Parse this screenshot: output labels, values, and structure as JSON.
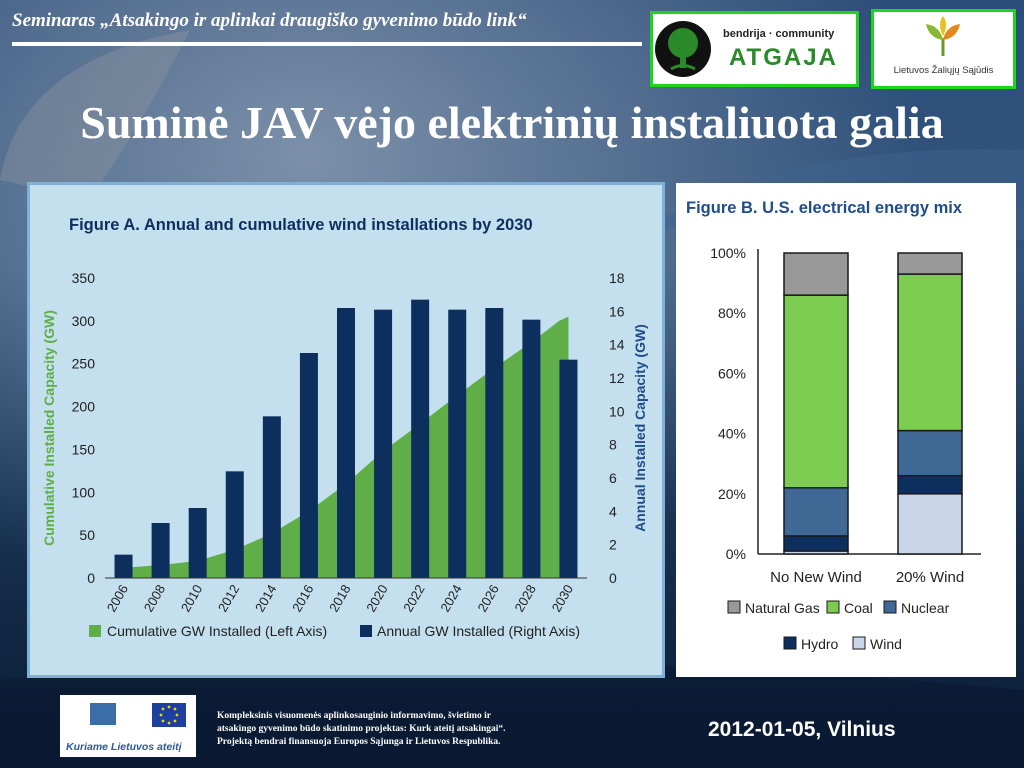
{
  "header": {
    "seminar": "Seminaras „Atsakingo ir aplinkai draugiško gyvenimo būdo link“",
    "logo_atgaja": {
      "top": "bendrija · community",
      "name": "ATGAJA"
    },
    "logo_lzs": {
      "name": "Lietuvos Žaliųjų Sąjūdis"
    }
  },
  "slide": {
    "title": "Suminė JAV vėjo elektrinių instaliuota galia"
  },
  "footer": {
    "logo_text": "Kuriame Lietuvos ateitį",
    "line1": "Kompleksinis visuomenės aplinkosauginio informavimo, švietimo ir",
    "line2": "atsakingo gyvenimo būdo skatinimo projektas: Kurk ateitį atsakingai“.",
    "line3": "Projektą bendrai finansuoja Europos Sąjunga ir Lietuvos Respublika.",
    "date": "2012-01-05, Vilnius"
  },
  "colors": {
    "green": "#5fae47",
    "navy": "#0d2f5e",
    "panel": "#c4dfee",
    "logo_border": "#1bd61b"
  },
  "chart_data": [
    {
      "type": "bar",
      "title": "Figure A. Annual and cumulative wind installations by 2030",
      "ylabel": "Cumulative Installed Capacity (GW)",
      "y2label": "Annual Installed Capacity (GW)",
      "ylim": [
        0,
        350
      ],
      "y2lim": [
        0,
        18
      ],
      "yticks": [
        "0",
        "50",
        "100",
        "150",
        "200",
        "250",
        "300",
        "350"
      ],
      "y2ticks": [
        "0",
        "2",
        "4",
        "6",
        "8",
        "10",
        "12",
        "14",
        "16",
        "18"
      ],
      "categories": [
        "2006",
        "2008",
        "2010",
        "2012",
        "2014",
        "2016",
        "2018",
        "2020",
        "2022",
        "2024",
        "2026",
        "2028",
        "2030"
      ],
      "series": [
        {
          "name": "Cumulative GW Installed (Left Axis)",
          "kind": "area",
          "color": "#5fae47",
          "x": [
            2006,
            2008,
            2010,
            2012,
            2014,
            2016,
            2018,
            2020,
            2022,
            2024,
            2026,
            2028,
            2029.5,
            2030
          ],
          "values": [
            12,
            15,
            20,
            33,
            52,
            78,
            110,
            148,
            180,
            213,
            245,
            275,
            300,
            305
          ]
        },
        {
          "name": "Annual GW Installed (Right Axis)",
          "kind": "bar",
          "color": "#0d2f5e",
          "values": [
            1.4,
            3.3,
            4.2,
            6.4,
            9.7,
            13.5,
            16.2,
            16.1,
            16.7,
            16.1,
            16.2,
            15.5,
            13.1
          ]
        }
      ]
    },
    {
      "type": "bar",
      "stacked": true,
      "title": "Figure B. U.S. electrical energy mix",
      "ylim": [
        0,
        100
      ],
      "yticks": [
        "0%",
        "20%",
        "40%",
        "60%",
        "80%",
        "100%"
      ],
      "categories": [
        "No New Wind",
        "20% Wind"
      ],
      "series": [
        {
          "name": "Wind",
          "color": "#c8d6e8",
          "values": [
            1,
            20
          ]
        },
        {
          "name": "Hydro",
          "color": "#0d2f5e",
          "values": [
            5,
            6
          ]
        },
        {
          "name": "Nuclear",
          "color": "#3f6895",
          "values": [
            16,
            15
          ]
        },
        {
          "name": "Coal",
          "color": "#7ccc52",
          "values": [
            64,
            52
          ]
        },
        {
          "name": "Natural Gas",
          "color": "#999999",
          "values": [
            14,
            7
          ]
        }
      ],
      "legend_order": [
        "Natural Gas",
        "Coal",
        "Nuclear",
        "Hydro",
        "Wind"
      ]
    }
  ]
}
